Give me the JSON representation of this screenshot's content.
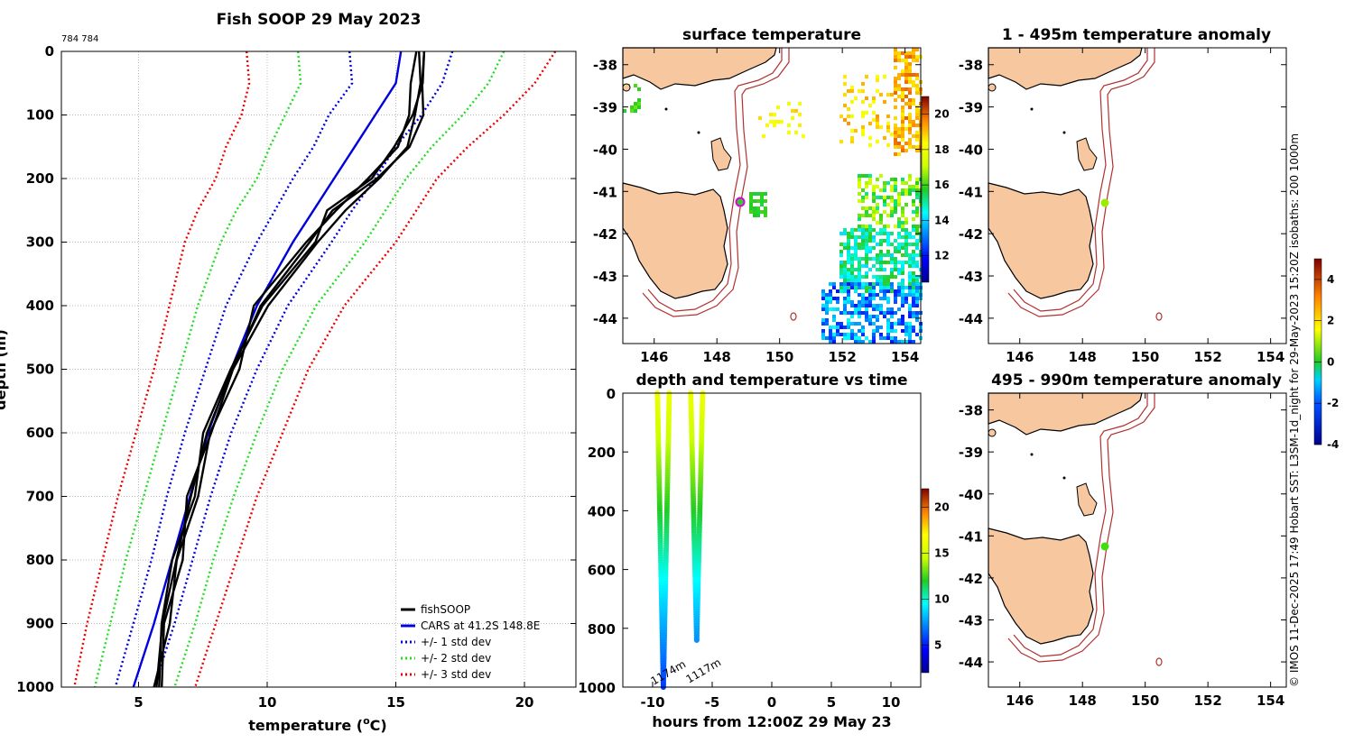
{
  "page_title": "Fish SOOP 29 May 2023",
  "count_label": "784 784",
  "credit": "© IMOS 11-Dec-2025 17:49 Hobart SST: L3SM-1d_night for 29-May-2023 15:20Z isobaths: 200  1000m",
  "colors": {
    "fishsoop": "#000000",
    "cars": "#0000dd",
    "std1": "#0000dd",
    "std2": "#22dd22",
    "std3": "#ee0000",
    "land": "#f7c8a0",
    "isobath": "#b03030"
  },
  "chart_data": [
    {
      "id": "profile",
      "type": "line",
      "title": "Fish SOOP 29 May 2023",
      "xlabel": "temperature (°C)",
      "xlabel_main": "temperature (",
      "xlabel_sup": "o",
      "xlabel_end": "C)",
      "ylabel": "depth (m)",
      "xlim": [
        2,
        22
      ],
      "ylim": [
        1000,
        0
      ],
      "xticks": [
        "5",
        "10",
        "15",
        "20"
      ],
      "yticks": [
        "0",
        "100",
        "200",
        "300",
        "400",
        "500",
        "600",
        "700",
        "800",
        "900",
        "1000"
      ],
      "depth": [
        0,
        50,
        100,
        150,
        200,
        250,
        300,
        400,
        500,
        600,
        700,
        800,
        900,
        1000
      ],
      "series": [
        {
          "name": "CARS mean",
          "temps": [
            15.2,
            15.0,
            14.2,
            13.4,
            12.6,
            11.8,
            11.0,
            9.6,
            8.6,
            7.7,
            7.0,
            6.3,
            5.6,
            4.8
          ]
        },
        {
          "name": "+1 std",
          "temps": [
            17.2,
            16.8,
            16.0,
            15.0,
            14.2,
            13.3,
            12.5,
            10.8,
            9.6,
            8.6,
            7.8,
            7.1,
            6.4,
            5.6
          ]
        },
        {
          "name": "-1 std",
          "temps": [
            13.2,
            13.3,
            12.4,
            11.8,
            11.0,
            10.3,
            9.6,
            8.4,
            7.6,
            6.8,
            6.1,
            5.5,
            4.8,
            4.1
          ]
        },
        {
          "name": "+2 std",
          "temps": [
            19.2,
            18.6,
            17.6,
            16.4,
            15.4,
            14.6,
            13.8,
            11.9,
            10.6,
            9.6,
            8.7,
            7.9,
            7.2,
            6.4
          ]
        },
        {
          "name": "-2 std",
          "temps": [
            11.2,
            11.3,
            10.7,
            10.1,
            9.6,
            8.8,
            8.2,
            7.3,
            6.6,
            5.9,
            5.2,
            4.5,
            3.9,
            3.3
          ]
        },
        {
          "name": "+3 std",
          "temps": [
            21.2,
            20.4,
            19.2,
            17.8,
            16.6,
            15.8,
            15.0,
            13.0,
            11.6,
            10.6,
            9.6,
            8.8,
            8.0,
            7.2
          ]
        },
        {
          "name": "-3 std",
          "temps": [
            9.2,
            9.3,
            9.0,
            8.4,
            8.0,
            7.3,
            6.8,
            6.2,
            5.6,
            4.9,
            4.2,
            3.6,
            3.0,
            2.5
          ]
        },
        {
          "name": "fishSOOP 1",
          "temps": [
            16.1,
            16.1,
            16.0,
            15.6,
            14.2,
            12.6,
            11.6,
            9.8,
            8.6,
            7.7,
            7.0,
            6.5,
            5.9,
            5.7
          ]
        },
        {
          "name": "fishSOOP 2",
          "temps": [
            15.8,
            15.7,
            15.4,
            15.2,
            13.8,
            12.8,
            11.4,
            9.6,
            8.8,
            7.9,
            7.2,
            6.6,
            6.1,
            5.6
          ]
        },
        {
          "name": "fishSOOP 3",
          "temps": [
            16.1,
            16.1,
            15.6,
            15.0,
            14.0,
            12.4,
            11.8,
            9.9,
            8.5,
            7.6,
            7.1,
            6.4,
            5.8,
            5.8
          ]
        },
        {
          "name": "fishSOOP 4",
          "temps": [
            15.9,
            15.9,
            15.8,
            15.4,
            14.4,
            13.0,
            12.0,
            10.0,
            8.7,
            7.8,
            6.9,
            6.7,
            6.0,
            5.9
          ]
        }
      ],
      "legend": [
        "fishSOOP",
        "CARS at 41.2S 148.8E",
        "+/- 1 std dev",
        "+/- 2 std dev",
        "+/- 3 std dev"
      ]
    },
    {
      "id": "surface",
      "type": "heatmap",
      "title": "surface temperature",
      "xticks": [
        "146",
        "148",
        "150",
        "152",
        "154"
      ],
      "yticks": [
        "-38",
        "-39",
        "-40",
        "-41",
        "-42",
        "-43",
        "-44"
      ],
      "xlim": [
        145,
        154.5
      ],
      "ylim": [
        -44.6,
        -37.6
      ],
      "colorbar": [
        "12",
        "14",
        "16",
        "18",
        "20"
      ],
      "clim": [
        10.5,
        21
      ],
      "station": [
        148.75,
        -41.22
      ]
    },
    {
      "id": "timeseries",
      "type": "scatter",
      "title": "depth and temperature vs time",
      "xlabel": "hours from 12:00Z 29 May 23",
      "xticks": [
        "-10",
        "-5",
        "0",
        "5",
        "10"
      ],
      "yticks": [
        "0",
        "200",
        "400",
        "600",
        "800",
        "1000"
      ],
      "xlim": [
        -12.5,
        12.5
      ],
      "ylim": [
        1000,
        0
      ],
      "colorbar": [
        "5",
        "10",
        "15",
        "20"
      ],
      "clim": [
        2,
        22
      ],
      "casts": [
        {
          "t_down": -9.6,
          "t_up": -8.6,
          "max_depth": 1000,
          "label": "1174m"
        },
        {
          "t_down": -6.8,
          "t_up": -5.8,
          "max_depth": 840,
          "label": "1117m"
        }
      ]
    },
    {
      "id": "anom1",
      "type": "heatmap",
      "title": "1 - 495m temperature anomaly",
      "xticks": [
        "146",
        "148",
        "150",
        "152",
        "154"
      ],
      "yticks": [
        "-38",
        "-39",
        "-40",
        "-41",
        "-42",
        "-43",
        "-44"
      ],
      "colorbar": [
        "-4",
        "-2",
        "0",
        "2",
        "4"
      ],
      "clim": [
        -4,
        5
      ],
      "station": [
        148.75,
        -41.22
      ]
    },
    {
      "id": "anom2",
      "type": "heatmap",
      "title": "495 - 990m temperature anomaly",
      "xticks": [
        "146",
        "148",
        "150",
        "152",
        "154"
      ],
      "yticks": [
        "-38",
        "-39",
        "-40",
        "-41",
        "-42",
        "-43",
        "-44"
      ],
      "station": [
        148.75,
        -41.22
      ]
    }
  ]
}
